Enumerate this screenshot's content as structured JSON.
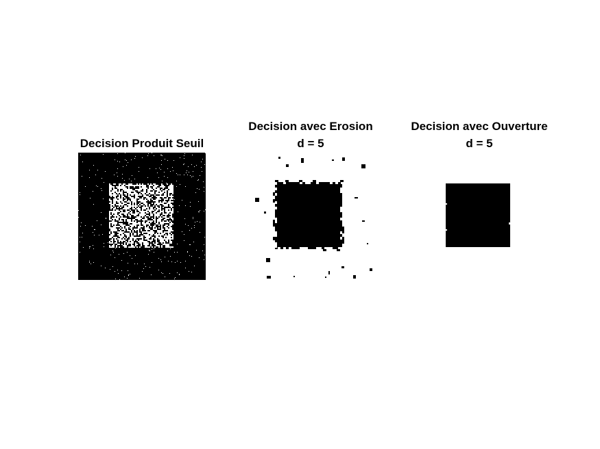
{
  "figure": {
    "background": "#ffffff",
    "panels": [
      {
        "id": "produit-seuil",
        "title_lines": [
          "Decision Produit Seuil"
        ],
        "image": {
          "kind": "binary",
          "background": "#000000",
          "inner_square": "noisy-white",
          "inner_square_fraction": 0.5,
          "sparse_noise": "white"
        }
      },
      {
        "id": "erosion",
        "title_lines": [
          "Decision avec Erosion",
          "d = 5"
        ],
        "image": {
          "kind": "binary",
          "background": "#ffffff",
          "inner_square": "solid-black",
          "inner_square_fraction": 0.54,
          "sparse_noise": "black-blocks"
        }
      },
      {
        "id": "ouverture",
        "title_lines": [
          "Decision avec Ouverture",
          "d = 5"
        ],
        "image": {
          "kind": "binary",
          "background": "#ffffff",
          "inner_square": "solid-black",
          "inner_square_fraction": 0.5,
          "sparse_noise": "none"
        }
      }
    ]
  }
}
